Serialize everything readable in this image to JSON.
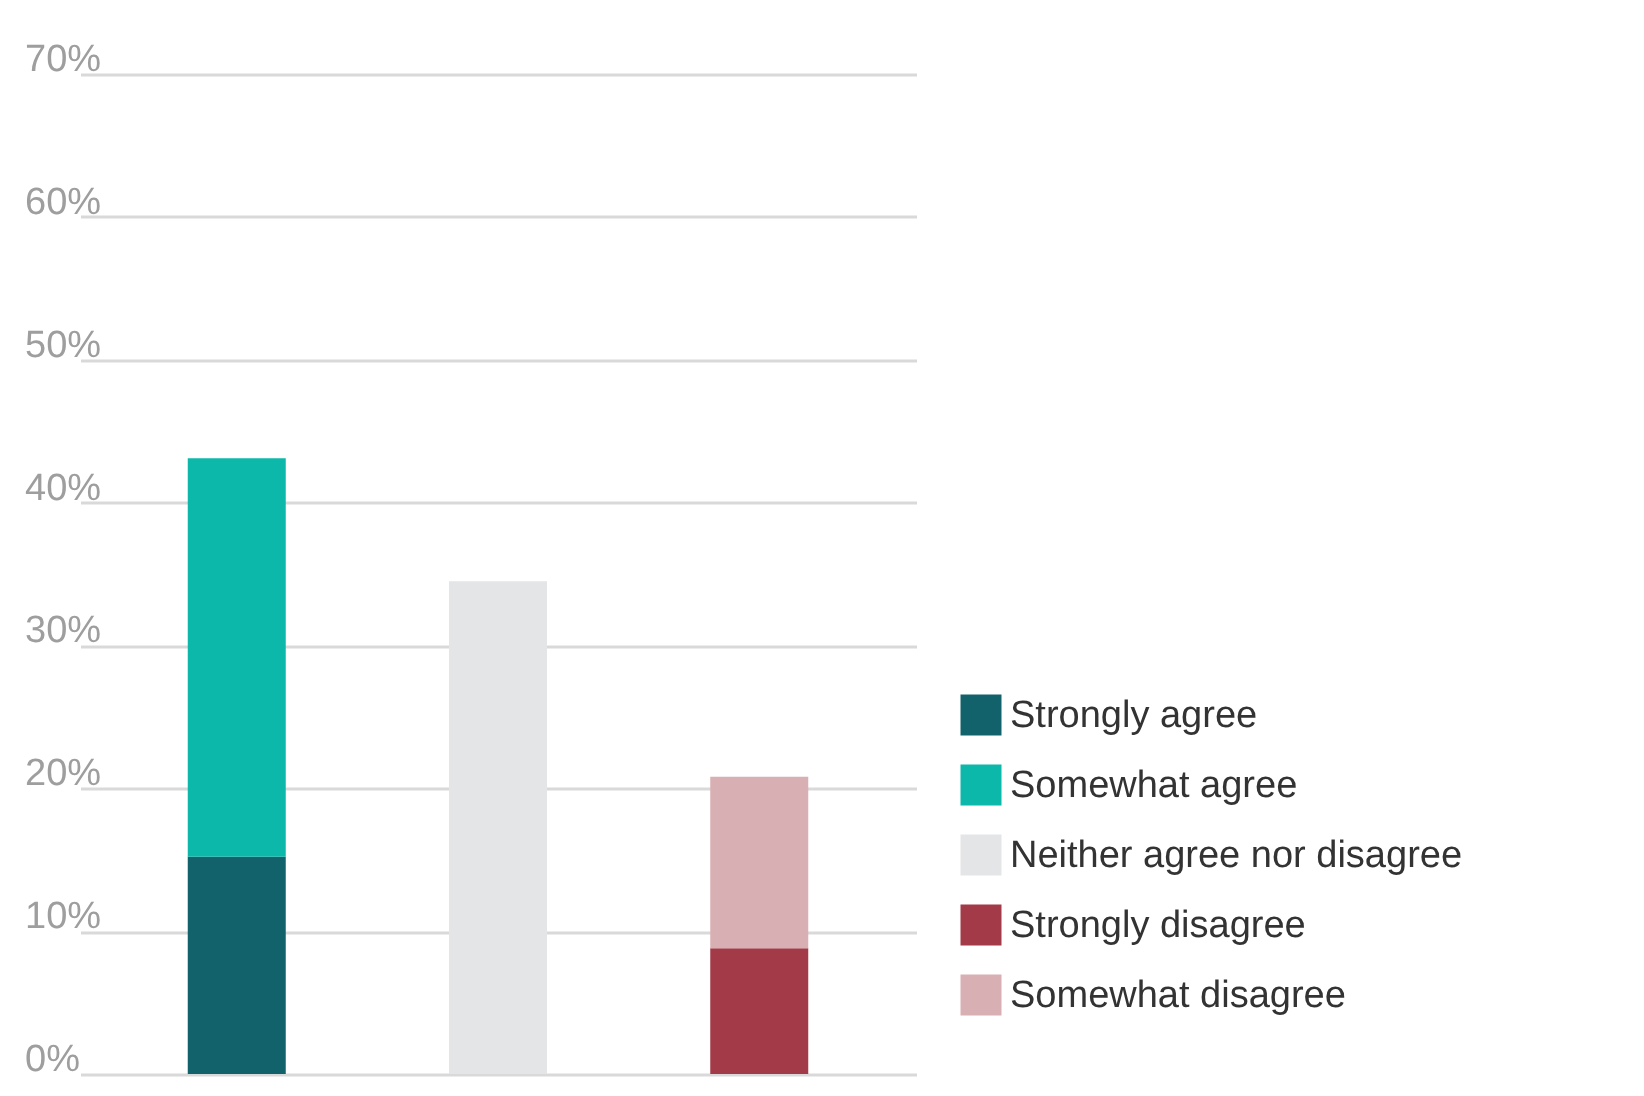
{
  "chart_data": {
    "type": "bar",
    "stacked": true,
    "categories": [
      null,
      null,
      null
    ],
    "series": [
      {
        "name": "Strongly agree",
        "color": "#12626c",
        "values": [
          15.2,
          null,
          null
        ]
      },
      {
        "name": "Somewhat agree",
        "color": "#0bb8aa",
        "values": [
          27.9,
          null,
          null
        ]
      },
      {
        "name": "Neither agree nor disagree",
        "color": "#e4e5e7",
        "values": [
          null,
          34.5,
          null
        ]
      },
      {
        "name": "Strongly disagree",
        "color": "#a23b47",
        "values": [
          null,
          null,
          8.8
        ]
      },
      {
        "name": "Somewhat disagree",
        "color": "#d8b0b3",
        "values": [
          null,
          null,
          12.0
        ]
      }
    ],
    "ylim": [
      0,
      70
    ],
    "yticks": [
      {
        "value": 0,
        "label": "0%"
      },
      {
        "value": 10,
        "label": "10%"
      },
      {
        "value": 20,
        "label": "20%"
      },
      {
        "value": 30,
        "label": "30%"
      },
      {
        "value": 40,
        "label": "40%"
      },
      {
        "value": 50,
        "label": "50%"
      },
      {
        "value": 60,
        "label": "60%"
      },
      {
        "value": 70,
        "label": "70%"
      }
    ],
    "grid": "y",
    "legend": "bottom right",
    "tick_labels": "y"
  }
}
